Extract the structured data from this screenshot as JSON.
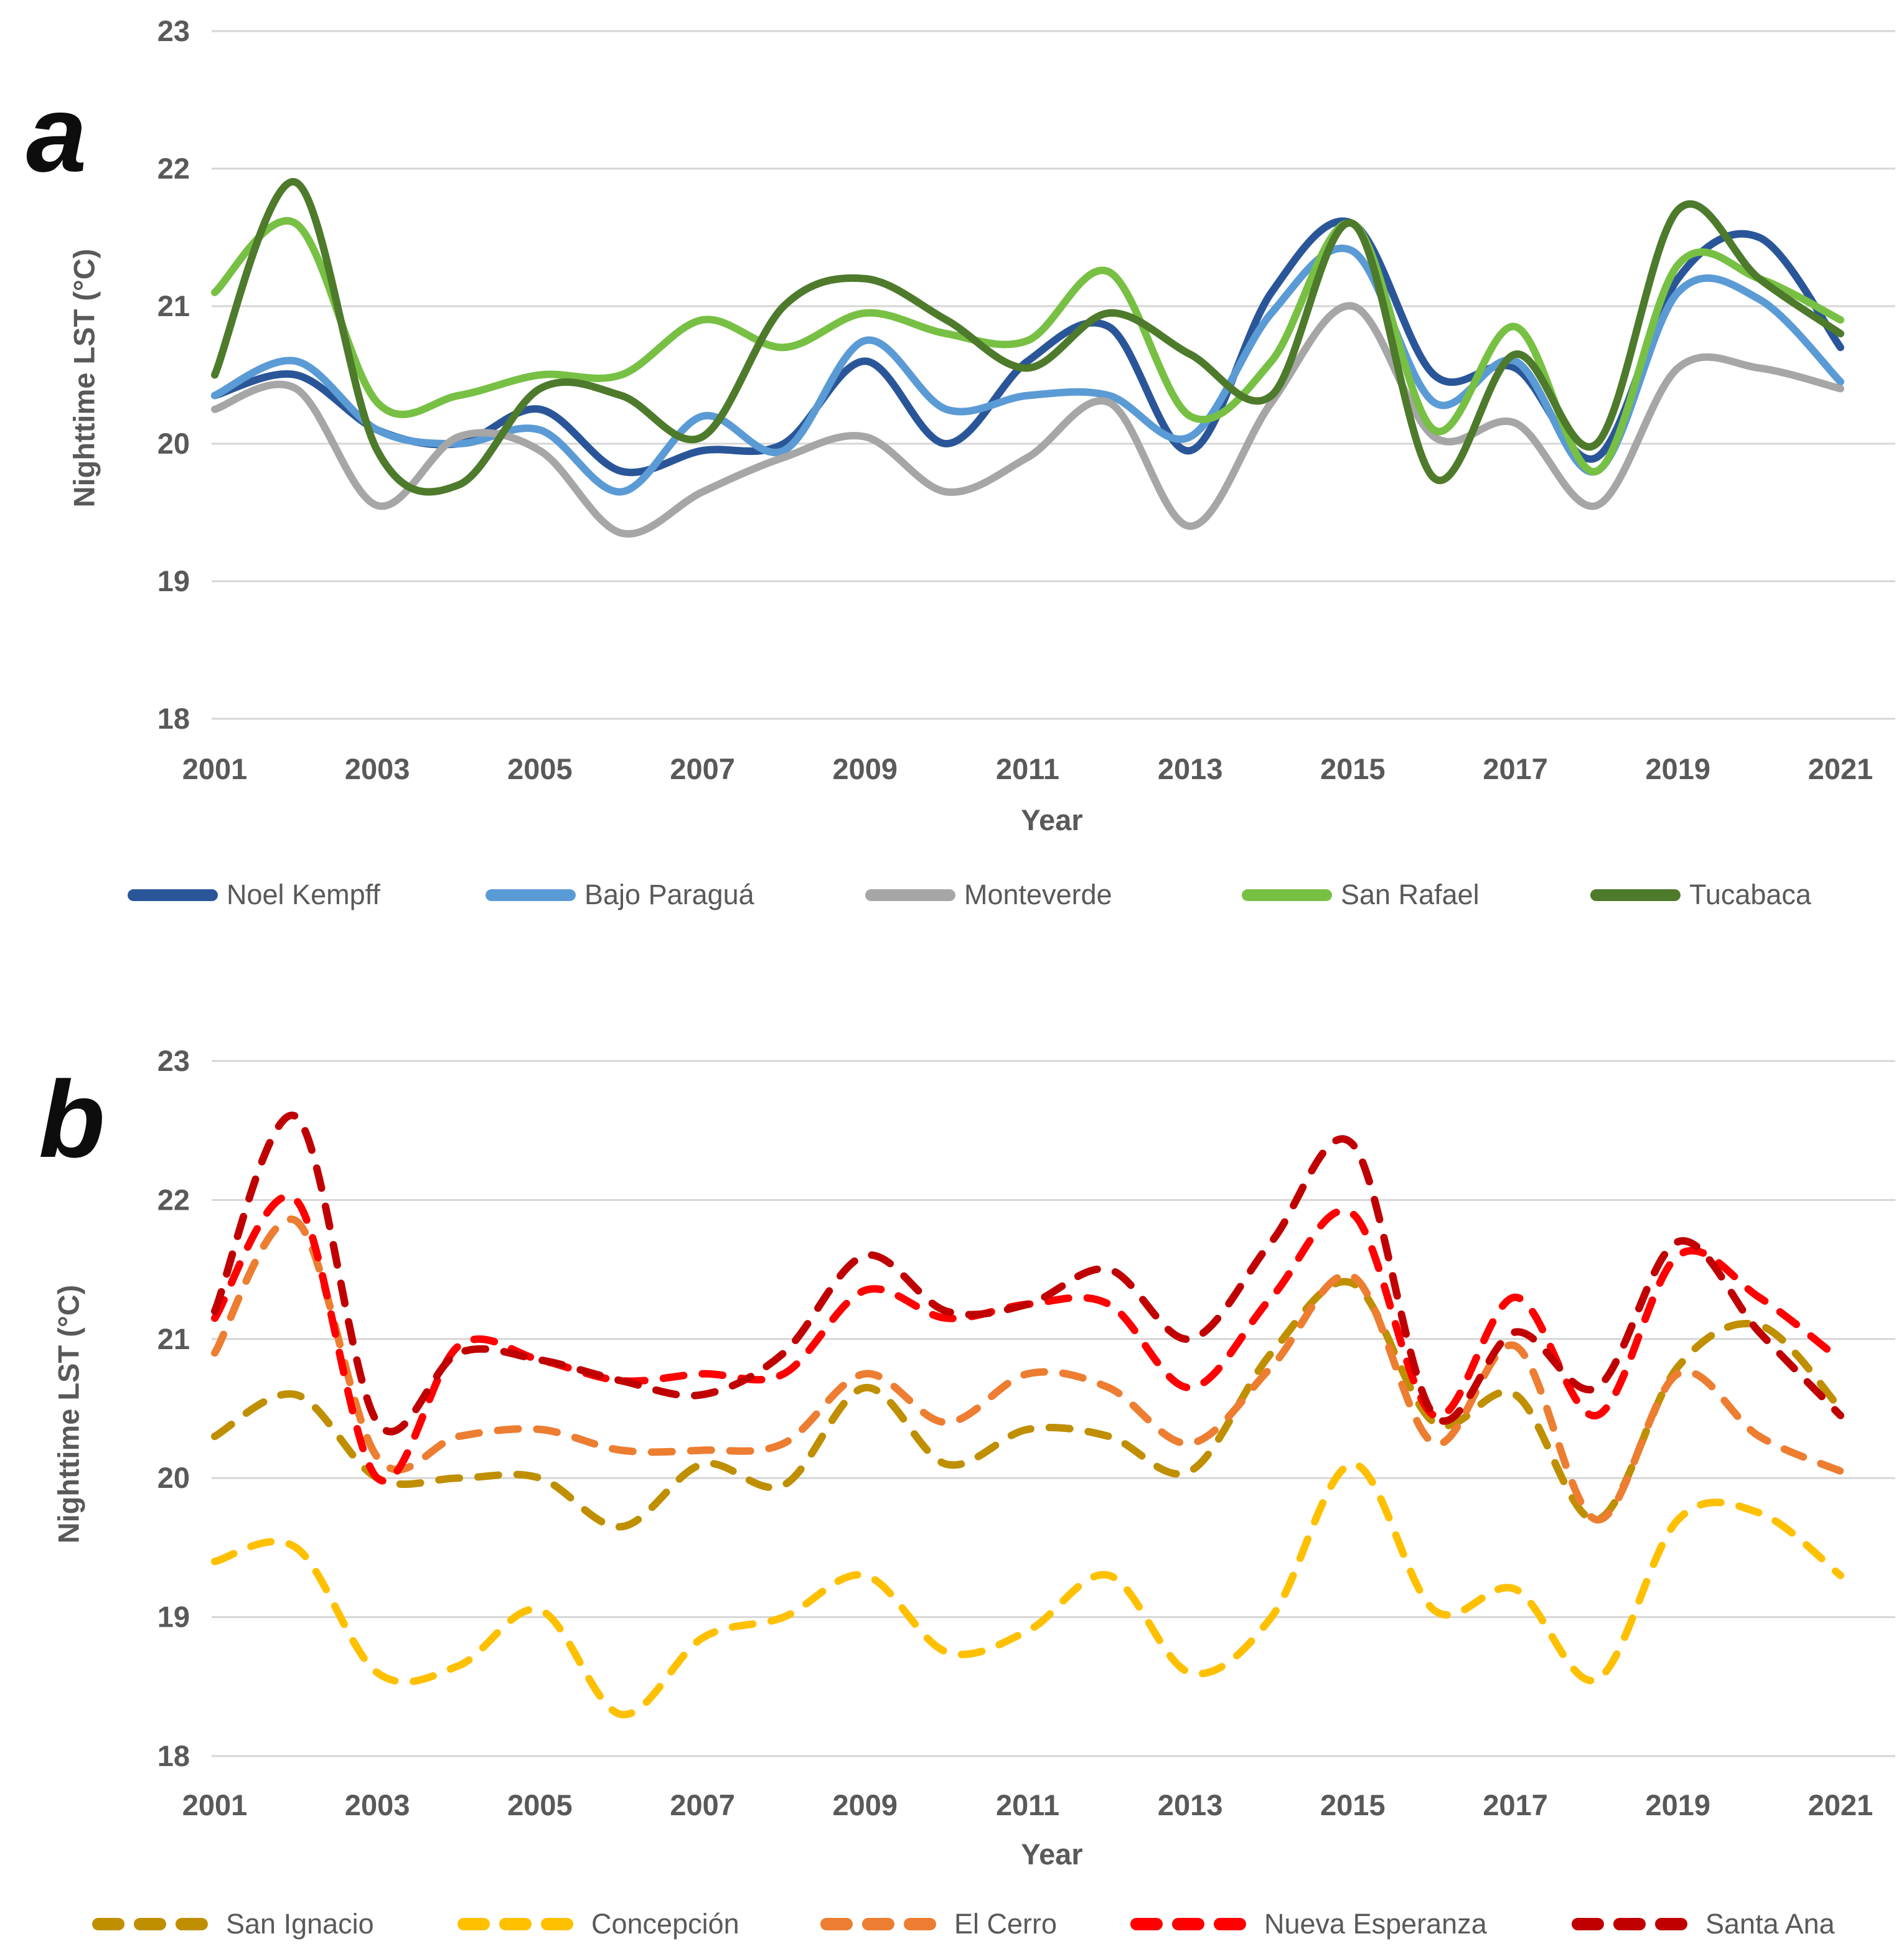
{
  "page": {
    "background": "#FFFFFF"
  },
  "panels": [
    {
      "letter": "a",
      "ylabel": "Nighttime LST (°C)",
      "xlabel": "Year"
    },
    {
      "letter": "b",
      "ylabel": "Nighttime LST (°C)",
      "xlabel": "Year"
    }
  ],
  "style": {
    "tick_label_color": "#595959",
    "gridline_color": "#D6D6D6",
    "panel_letter_color": "#0D0D0D",
    "line_width": 12
  },
  "chart_data": [
    {
      "type": "line",
      "panel": "a",
      "line_style": "solid",
      "grid": true,
      "legend_position": "bottom",
      "title": "",
      "xlabel": "Year",
      "ylabel": "Nighttime LST (°C)",
      "x": [
        2001,
        2002,
        2003,
        2004,
        2005,
        2006,
        2007,
        2008,
        2009,
        2010,
        2011,
        2012,
        2013,
        2014,
        2015,
        2016,
        2017,
        2018,
        2019,
        2020,
        2021
      ],
      "xticks": [
        2001,
        2003,
        2005,
        2007,
        2009,
        2011,
        2013,
        2015,
        2017,
        2019,
        2021
      ],
      "ylim": [
        18,
        23
      ],
      "yticks": [
        23,
        22,
        21,
        20,
        19,
        18
      ],
      "series": [
        {
          "name": "Noel Kempff",
          "color": "#2A5699",
          "values": [
            20.35,
            20.5,
            20.1,
            20.0,
            20.25,
            19.8,
            19.95,
            20.0,
            20.6,
            20.0,
            20.6,
            20.85,
            19.95,
            21.1,
            21.6,
            20.5,
            20.55,
            19.9,
            21.2,
            21.5,
            20.7
          ]
        },
        {
          "name": "Bajo Paraguá",
          "color": "#5B9BD5",
          "values": [
            20.35,
            20.6,
            20.1,
            20.0,
            20.1,
            19.65,
            20.2,
            19.95,
            20.75,
            20.25,
            20.35,
            20.35,
            20.05,
            20.95,
            21.4,
            20.3,
            20.6,
            19.8,
            21.1,
            21.05,
            20.45
          ]
        },
        {
          "name": "Monteverde",
          "color": "#A6A6A6",
          "values": [
            20.25,
            20.4,
            19.55,
            20.05,
            19.95,
            19.35,
            19.65,
            19.9,
            20.05,
            19.65,
            19.9,
            20.3,
            19.4,
            20.3,
            21.0,
            20.05,
            20.15,
            19.55,
            20.55,
            20.55,
            20.4
          ]
        },
        {
          "name": "San Rafael",
          "color": "#77C044",
          "values": [
            21.1,
            21.6,
            20.3,
            20.35,
            20.5,
            20.5,
            20.9,
            20.7,
            20.95,
            20.8,
            20.75,
            21.25,
            20.2,
            20.6,
            21.6,
            20.1,
            20.85,
            19.8,
            21.3,
            21.2,
            20.9
          ]
        },
        {
          "name": "Tucabaca",
          "color": "#4E7A2B",
          "values": [
            20.5,
            21.9,
            19.95,
            19.7,
            20.4,
            20.35,
            20.05,
            21.0,
            21.2,
            20.9,
            20.55,
            20.95,
            20.65,
            20.35,
            21.6,
            19.75,
            20.65,
            20.0,
            21.7,
            21.2,
            20.8
          ]
        }
      ]
    },
    {
      "type": "line",
      "panel": "b",
      "line_style": "dashed",
      "grid": true,
      "legend_position": "bottom",
      "title": "",
      "xlabel": "Year",
      "ylabel": "Nighttime LST (°C)",
      "x": [
        2001,
        2002,
        2003,
        2004,
        2005,
        2006,
        2007,
        2008,
        2009,
        2010,
        2011,
        2012,
        2013,
        2014,
        2015,
        2016,
        2017,
        2018,
        2019,
        2020,
        2021
      ],
      "xticks": [
        2001,
        2003,
        2005,
        2007,
        2009,
        2011,
        2013,
        2015,
        2017,
        2019,
        2021
      ],
      "ylim": [
        18,
        23
      ],
      "yticks": [
        23,
        22,
        21,
        20,
        19,
        18
      ],
      "series": [
        {
          "name": "San Ignacio",
          "color": "#BF8F00",
          "values": [
            20.3,
            20.6,
            20.0,
            20.0,
            20.0,
            19.65,
            20.1,
            19.95,
            20.65,
            20.1,
            20.35,
            20.3,
            20.05,
            20.9,
            21.4,
            20.4,
            20.6,
            19.7,
            20.8,
            21.1,
            20.5
          ]
        },
        {
          "name": "Concepción",
          "color": "#FFC000",
          "values": [
            19.4,
            19.5,
            18.6,
            18.65,
            19.05,
            18.3,
            18.85,
            19.0,
            19.3,
            18.75,
            18.9,
            19.3,
            18.6,
            19.0,
            20.1,
            19.05,
            19.2,
            18.55,
            19.7,
            19.75,
            19.3
          ]
        },
        {
          "name": "El Cerro",
          "color": "#ED7D31",
          "values": [
            20.9,
            21.85,
            20.15,
            20.3,
            20.35,
            20.2,
            20.2,
            20.25,
            20.75,
            20.4,
            20.75,
            20.65,
            20.25,
            20.8,
            21.45,
            20.25,
            20.95,
            19.7,
            20.75,
            20.3,
            20.05
          ]
        },
        {
          "name": "Nueva Esperanza",
          "color": "#FF0000",
          "values": [
            21.15,
            22.0,
            20.0,
            20.95,
            20.85,
            20.7,
            20.75,
            20.75,
            21.35,
            21.15,
            21.25,
            21.25,
            20.65,
            21.3,
            21.9,
            20.45,
            21.3,
            20.45,
            21.6,
            21.3,
            20.85
          ]
        },
        {
          "name": "Santa Ana",
          "color": "#C00000",
          "values": [
            21.2,
            22.6,
            20.4,
            20.9,
            20.85,
            20.7,
            20.6,
            20.9,
            21.6,
            21.2,
            21.25,
            21.5,
            21.0,
            21.7,
            22.4,
            20.45,
            21.05,
            20.65,
            21.7,
            21.05,
            20.45
          ]
        }
      ]
    }
  ],
  "legend_a_items": [
    "Noel Kempff",
    "Bajo Paraguá",
    "Monteverde",
    "San Rafael",
    "Tucabaca"
  ],
  "legend_b_items": [
    "San Ignacio",
    "Concepción",
    "El Cerro",
    "Nueva Esperanza",
    "Santa Ana"
  ]
}
